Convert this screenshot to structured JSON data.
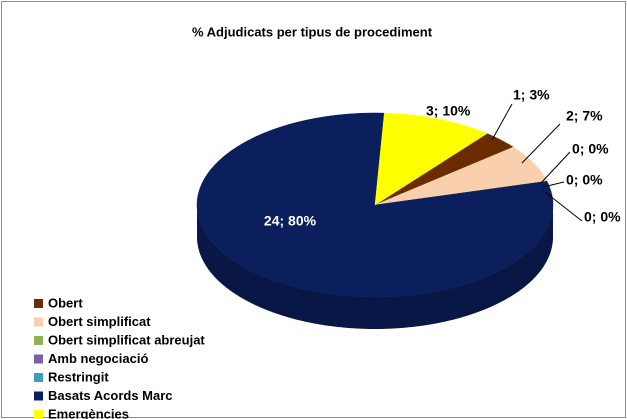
{
  "chart_data": {
    "type": "pie",
    "title": "% Adjudicats per tipus de procediment",
    "categories": [
      "Obert",
      "Obert simplificat",
      "Obert simplificat abreujat",
      "Amb negociació",
      "Restringit",
      "Basats Acords Marc",
      "Emergències"
    ],
    "values": [
      1,
      2,
      0,
      0,
      0,
      24,
      3
    ],
    "value_labels": [
      "1; 3%",
      "2; 7%",
      "0; 0%",
      "0; 0%",
      "0; 0%",
      "24; 80%",
      "3; 10%"
    ],
    "colors": [
      "#6b2c00",
      "#f9cfae",
      "#8fb15a",
      "#7b5fa0",
      "#3aa0b8",
      "#0a1f5c",
      "#ffff00"
    ],
    "legend": "bottom-left"
  }
}
